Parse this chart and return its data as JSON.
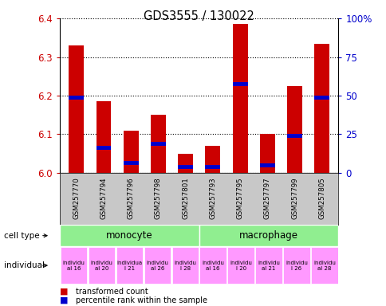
{
  "title": "GDS3555 / 130022",
  "samples": [
    "GSM257770",
    "GSM257794",
    "GSM257796",
    "GSM257798",
    "GSM257801",
    "GSM257793",
    "GSM257795",
    "GSM257797",
    "GSM257799",
    "GSM257805"
  ],
  "red_values": [
    6.33,
    6.185,
    6.11,
    6.15,
    6.05,
    6.07,
    6.385,
    6.1,
    6.225,
    6.335
  ],
  "blue_values": [
    6.195,
    6.065,
    6.025,
    6.075,
    6.015,
    6.015,
    6.23,
    6.02,
    6.095,
    6.195
  ],
  "ylim": [
    6.0,
    6.4
  ],
  "yticks_left": [
    6.0,
    6.1,
    6.2,
    6.3,
    6.4
  ],
  "yticks_right_vals": [
    0,
    25,
    50,
    75,
    100
  ],
  "yticks_right_labels": [
    "0",
    "25",
    "50",
    "75",
    "100%"
  ],
  "bar_width": 0.55,
  "bar_color_red": "#cc0000",
  "bar_color_blue": "#0000cc",
  "tick_color_left": "#cc0000",
  "tick_color_right": "#0000cc",
  "legend_red": "transformed count",
  "legend_blue": "percentile rank within the sample",
  "cell_type_label": "cell type",
  "individual_label": "individual",
  "monocyte_color": "#90ee90",
  "macrophage_color": "#90ee90",
  "individual_color": "#ff99ff",
  "sample_bg_color": "#c8c8c8",
  "ind_labels": [
    "individu\nal 16",
    "individu\nal 20",
    "individua\nl 21",
    "individu\nal 26",
    "individu\nl 28",
    "individu\nal 16",
    "individu\nl 20",
    "individu\nal 21",
    "individu\nl 26",
    "individu\nal 28"
  ]
}
